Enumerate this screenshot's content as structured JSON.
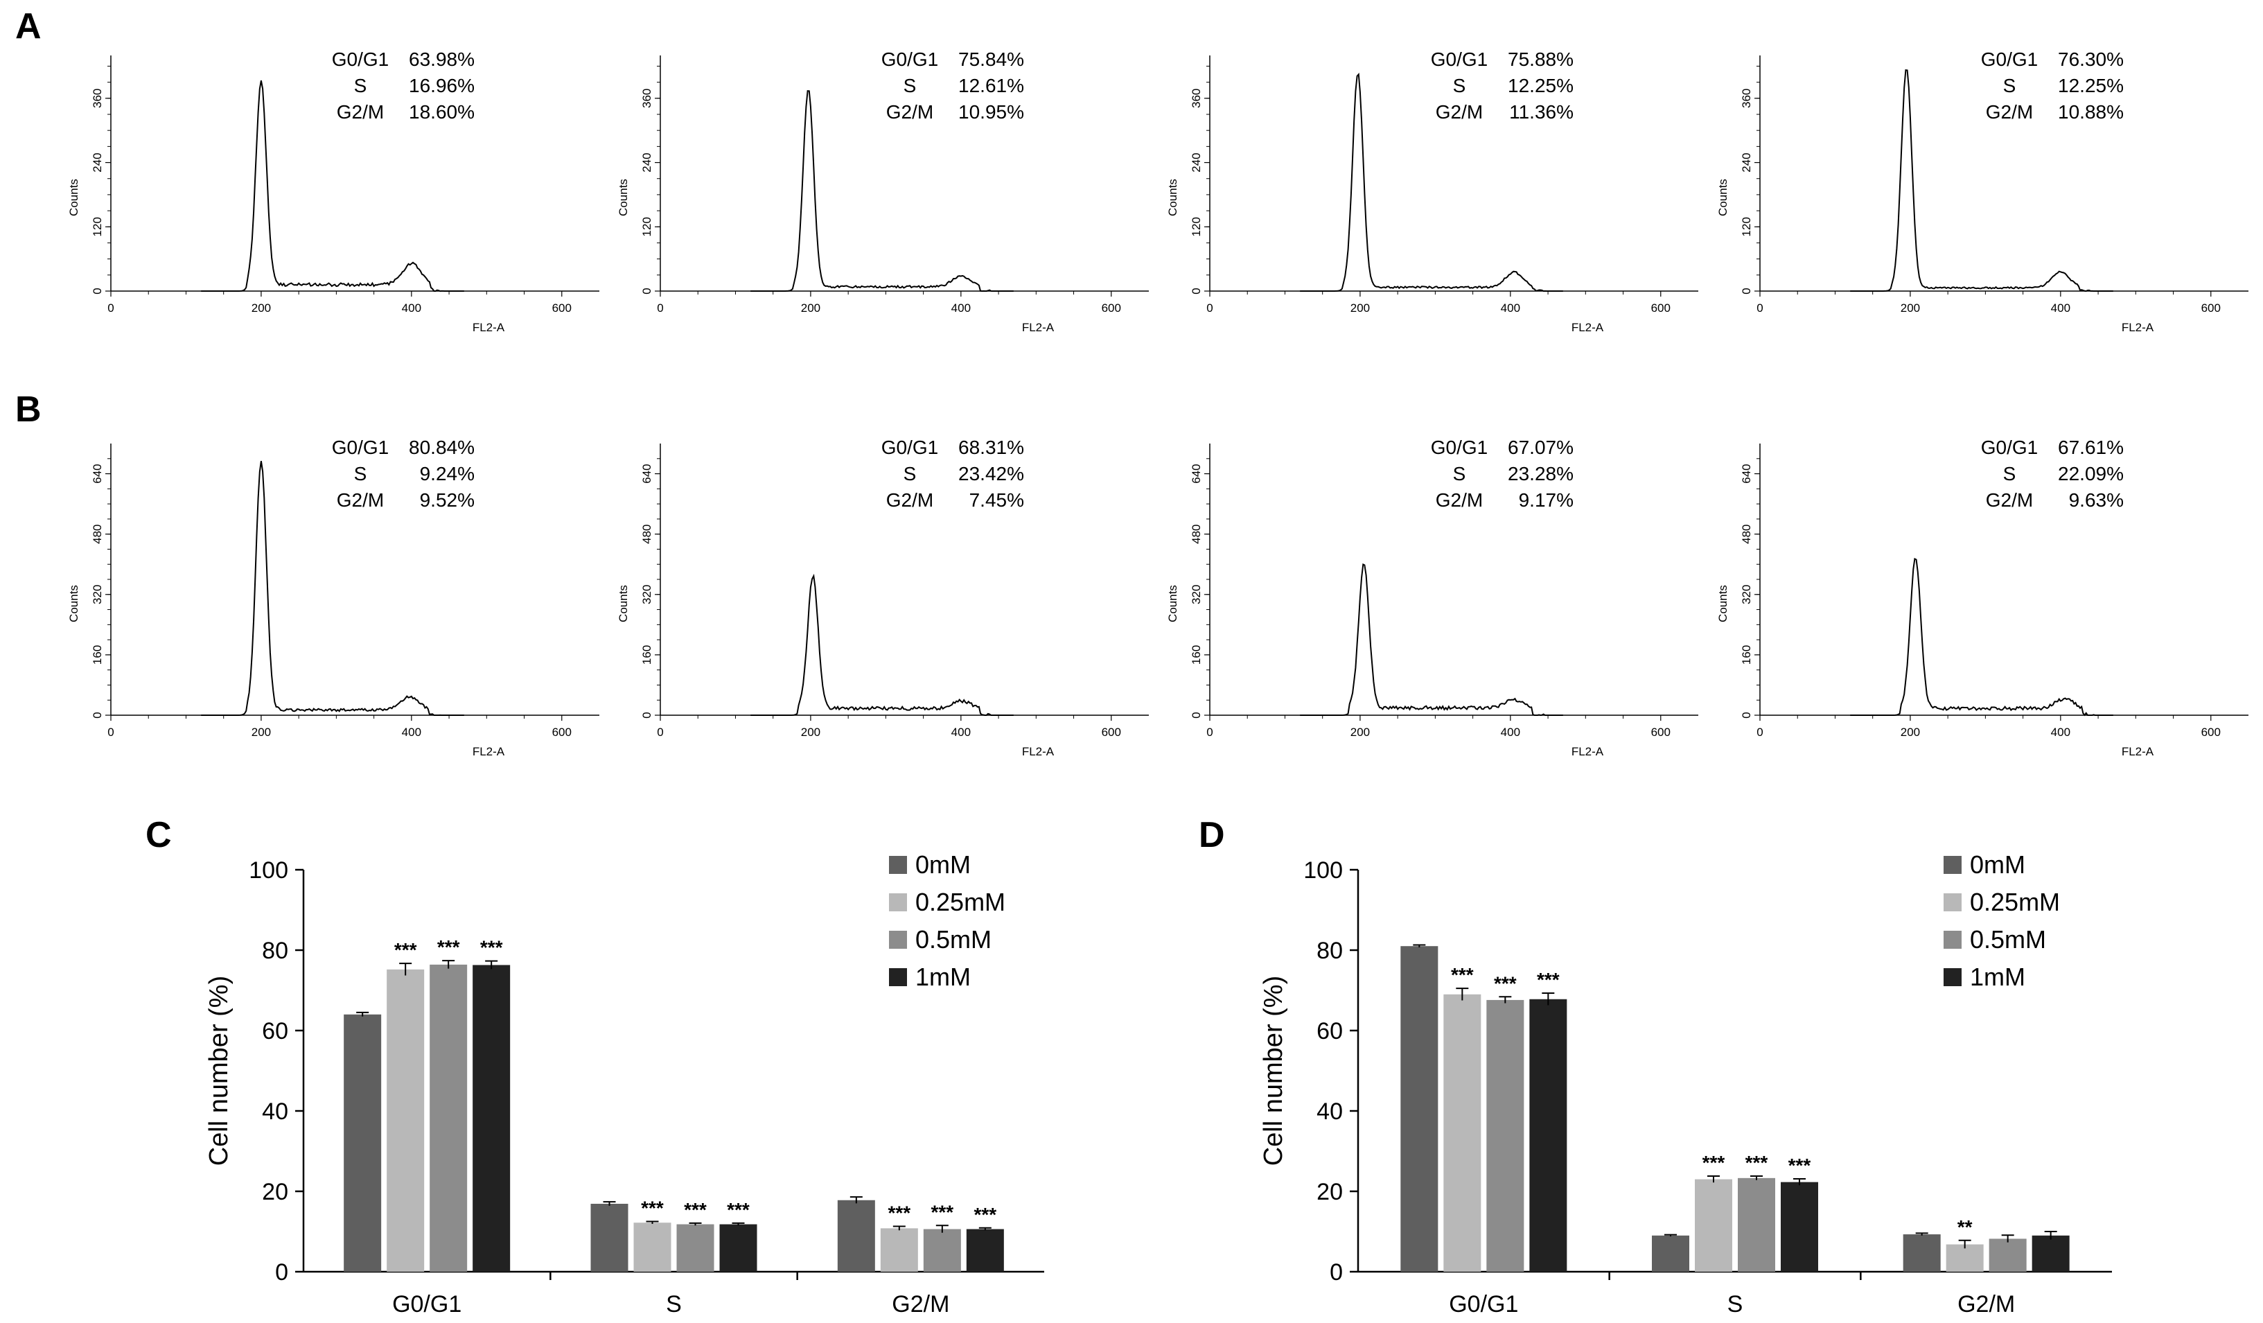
{
  "chart_data": [
    {
      "type": "histogram-grid",
      "panel_label": "A",
      "xlabel": "FL2-A",
      "ylabel": "Counts",
      "x_ticks": [
        "0",
        "200",
        "400",
        "600"
      ],
      "y_ticks": [
        "0",
        "120",
        "240",
        "360"
      ],
      "xlim": [
        0,
        650
      ],
      "ylim": [
        0,
        440
      ],
      "phase_labels": [
        "G0/G1",
        "S",
        "G2/M"
      ],
      "plots": [
        {
          "g0g1": "63.98%",
          "s": "16.96%",
          "g2m": "18.60%",
          "g1_peak_x": 200,
          "g1_peak_height": 380,
          "g2_peak_x": 400,
          "g2_peak_height": 40,
          "plateau": 12
        },
        {
          "g0g1": "75.84%",
          "s": "12.61%",
          "g2m": "10.95%",
          "g1_peak_x": 197,
          "g1_peak_height": 370,
          "g2_peak_x": 400,
          "g2_peak_height": 20,
          "plateau": 8
        },
        {
          "g0g1": "75.88%",
          "s": "12.25%",
          "g2m": "11.36%",
          "g1_peak_x": 197,
          "g1_peak_height": 400,
          "g2_peak_x": 405,
          "g2_peak_height": 28,
          "plateau": 7
        },
        {
          "g0g1": "76.30%",
          "s": "12.25%",
          "g2m": "10.88%",
          "g1_peak_x": 195,
          "g1_peak_height": 410,
          "g2_peak_x": 400,
          "g2_peak_height": 30,
          "plateau": 6
        }
      ]
    },
    {
      "type": "histogram-grid",
      "panel_label": "B",
      "xlabel": "FL2-A",
      "ylabel": "Counts",
      "x_ticks": [
        "0",
        "200",
        "400",
        "600"
      ],
      "y_ticks": [
        "0",
        "160",
        "320",
        "480",
        "640"
      ],
      "xlim": [
        0,
        650
      ],
      "ylim": [
        0,
        720
      ],
      "phase_labels": [
        "G0/G1",
        "S",
        "G2/M"
      ],
      "plots": [
        {
          "g0g1": "80.84%",
          "s": "9.24%",
          "g2m": "9.52%",
          "g1_peak_x": 200,
          "g1_peak_height": 660,
          "g2_peak_x": 398,
          "g2_peak_height": 35,
          "plateau": 14
        },
        {
          "g0g1": "68.31%",
          "s": "23.42%",
          "g2m": "7.45%",
          "g1_peak_x": 203,
          "g1_peak_height": 350,
          "g2_peak_x": 400,
          "g2_peak_height": 20,
          "plateau": 18
        },
        {
          "g0g1": "67.07%",
          "s": "23.28%",
          "g2m": "9.17%",
          "g1_peak_x": 205,
          "g1_peak_height": 380,
          "g2_peak_x": 405,
          "g2_peak_height": 22,
          "plateau": 20
        },
        {
          "g0g1": "67.61%",
          "s": "22.09%",
          "g2m": "9.63%",
          "g1_peak_x": 207,
          "g1_peak_height": 400,
          "g2_peak_x": 405,
          "g2_peak_height": 25,
          "plateau": 18
        }
      ]
    },
    {
      "type": "bar",
      "panel_label": "C",
      "ylabel": "Cell number (%)",
      "ylim": [
        0,
        100
      ],
      "y_ticks": [
        "0",
        "20",
        "40",
        "60",
        "80",
        "100"
      ],
      "categories": [
        "G0/G1",
        "S",
        "G2/M"
      ],
      "series": [
        {
          "name": "0mM",
          "color": "#5f5f5f",
          "values": [
            64.0,
            16.9,
            17.8
          ],
          "errors": [
            0.5,
            0.5,
            0.8
          ],
          "sig": [
            "",
            "",
            ""
          ]
        },
        {
          "name": "0.25mM",
          "color": "#b8b8b8",
          "values": [
            75.2,
            12.2,
            10.8
          ],
          "errors": [
            1.5,
            0.3,
            0.5
          ],
          "sig": [
            "***",
            "***",
            "***"
          ]
        },
        {
          "name": "0.5mM",
          "color": "#8c8c8c",
          "values": [
            76.4,
            11.8,
            10.6
          ],
          "errors": [
            1.0,
            0.3,
            0.9
          ],
          "sig": [
            "***",
            "***",
            "***"
          ]
        },
        {
          "name": "1mM",
          "color": "#222222",
          "values": [
            76.3,
            11.8,
            10.6
          ],
          "errors": [
            1.0,
            0.3,
            0.3
          ],
          "sig": [
            "***",
            "***",
            "***"
          ]
        }
      ]
    },
    {
      "type": "bar",
      "panel_label": "D",
      "ylabel": "Cell number (%)",
      "ylim": [
        0,
        100
      ],
      "y_ticks": [
        "0",
        "20",
        "40",
        "60",
        "80",
        "100"
      ],
      "categories": [
        "G0/G1",
        "S",
        "G2/M"
      ],
      "series": [
        {
          "name": "0mM",
          "color": "#5f5f5f",
          "values": [
            81.0,
            9.0,
            9.3
          ],
          "errors": [
            0.3,
            0.2,
            0.3
          ],
          "sig": [
            "",
            "",
            ""
          ]
        },
        {
          "name": "0.25mM",
          "color": "#b8b8b8",
          "values": [
            69.0,
            23.0,
            6.8
          ],
          "errors": [
            1.5,
            0.8,
            1.0
          ],
          "sig": [
            "***",
            "***",
            "**"
          ]
        },
        {
          "name": "0.5mM",
          "color": "#8c8c8c",
          "values": [
            67.6,
            23.3,
            8.2
          ],
          "errors": [
            0.8,
            0.5,
            0.9
          ],
          "sig": [
            "***",
            "***",
            ""
          ]
        },
        {
          "name": "1mM",
          "color": "#222222",
          "values": [
            67.8,
            22.3,
            9.0
          ],
          "errors": [
            1.5,
            0.8,
            1.0
          ],
          "sig": [
            "***",
            "***",
            ""
          ]
        }
      ]
    }
  ]
}
